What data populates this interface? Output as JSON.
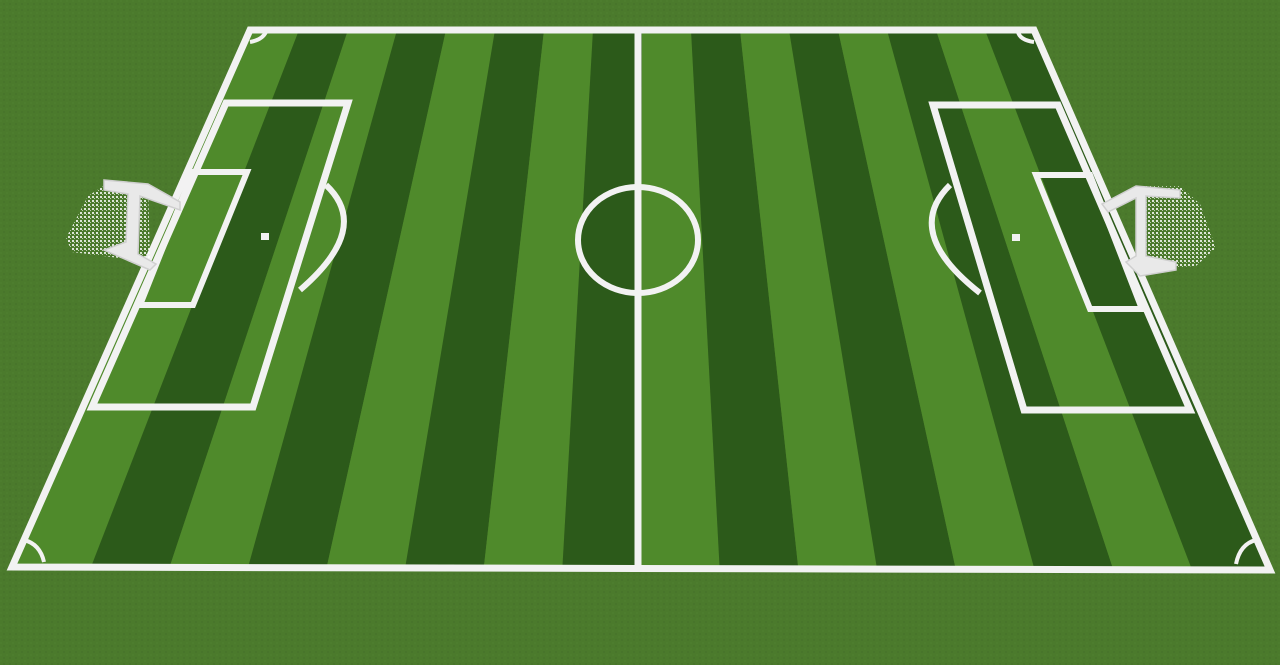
{
  "scene": {
    "type": "voxel-game-soccer-pitch",
    "view": "elevated-perspective",
    "grass_color": "#4b7a2c",
    "stripe_light": "#4f8a2b",
    "stripe_dark": "#2c5a1a",
    "line_color": "#f2f2f2",
    "stripe_count": 16,
    "net_color": "#f4f4f4"
  },
  "pitch": {
    "has_halfway_line": true,
    "has_center_circle": true,
    "has_penalty_spots": true,
    "has_corner_arcs": true,
    "goals": [
      "left",
      "right"
    ]
  }
}
